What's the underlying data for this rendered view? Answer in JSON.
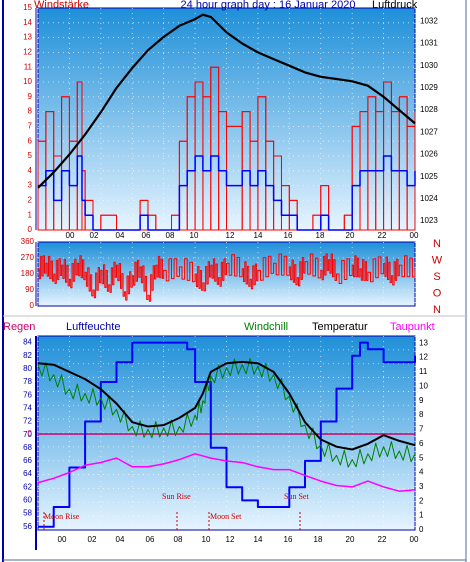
{
  "top_panel": {
    "left_title": "Windstärke",
    "center_title": "24 hour graph day : 16 Januar 2020",
    "right_title": "Luftdruck",
    "left_ticks": [
      "0",
      "1",
      "2",
      "3",
      "4",
      "5",
      "6",
      "7",
      "8",
      "9",
      "10",
      "11",
      "12",
      "13",
      "14",
      "15"
    ],
    "right_ticks": [
      "1023",
      "1024",
      "1025",
      "1026",
      "1027",
      "1028",
      "1029",
      "1030",
      "1031",
      "1032"
    ]
  },
  "direction_panel": {
    "left_ticks": [
      "0",
      "90",
      "180",
      "270",
      "360"
    ],
    "right_letters": [
      "N",
      "W",
      "S",
      "O",
      "N"
    ]
  },
  "bottom_panel": {
    "titles": {
      "rain": "Regen",
      "humidity": "Luftfeuchte",
      "windchill": "Windchill",
      "temperature": "Temperatur",
      "dewpoint": "Taupunkt"
    },
    "left_ticks": [
      "56",
      "58",
      "60",
      "62",
      "64",
      "66",
      "68",
      "70",
      "72",
      "74",
      "76",
      "78",
      "80",
      "82",
      "84"
    ],
    "right_ticks": [
      "0",
      "1",
      "2",
      "3",
      "4",
      "5",
      "6",
      "7",
      "8",
      "9",
      "10",
      "11",
      "12",
      "13"
    ],
    "zero_label": "0",
    "annotations": {
      "moon_rise": "Moon Rise",
      "sun_rise": "Sun Rise",
      "moon_set": "Moon Set",
      "sun_set": "Sun Set"
    }
  },
  "x_ticks": [
    "00",
    "02",
    "04",
    "06",
    "08",
    "10",
    "12",
    "14",
    "16",
    "18",
    "20",
    "22",
    "00"
  ],
  "colors": {
    "frame_blue": "#0000aa",
    "sky_top": "#1e8fd8",
    "sky_bottom": "#e6f4ff",
    "wind_gust": "#ff0000",
    "wind_avg": "#0000ff",
    "pressure": "#000000",
    "direction": "#ff0000",
    "humidity": "#0000ff",
    "temperature": "#000000",
    "windchill": "#008000",
    "dewpoint": "#ff00ff",
    "rain_line": "#cc0066",
    "left_axis_text": "#cc0000"
  },
  "chart_data": [
    {
      "type": "line",
      "title": "24 hour graph day : 16 Januar 2020",
      "x_unit": "hour",
      "xlim": [
        0,
        24
      ],
      "series": [
        {
          "name": "Windstärke",
          "axis": "left",
          "ylim": [
            0,
            15
          ],
          "points": [
            [
              0,
              6
            ],
            [
              0.5,
              8
            ],
            [
              1,
              5
            ],
            [
              1.5,
              9
            ],
            [
              2,
              6
            ],
            [
              2.5,
              10
            ],
            [
              2.8,
              4
            ],
            [
              3,
              2
            ],
            [
              3.5,
              0
            ],
            [
              4,
              1
            ],
            [
              5,
              0
            ],
            [
              6,
              0
            ],
            [
              6.5,
              2
            ],
            [
              7,
              1
            ],
            [
              7.5,
              0
            ],
            [
              8,
              0
            ],
            [
              8.5,
              1
            ],
            [
              9,
              6
            ],
            [
              9.5,
              9
            ],
            [
              10,
              10
            ],
            [
              10.5,
              9
            ],
            [
              11,
              11
            ],
            [
              11.5,
              8
            ],
            [
              12,
              7
            ],
            [
              13,
              8
            ],
            [
              13.5,
              6
            ],
            [
              14,
              9
            ],
            [
              14.5,
              6
            ],
            [
              15,
              5
            ],
            [
              15.5,
              3
            ],
            [
              16,
              2
            ],
            [
              16.5,
              0
            ],
            [
              17,
              0
            ],
            [
              17.5,
              1
            ],
            [
              18,
              3
            ],
            [
              18.5,
              0
            ],
            [
              19,
              0
            ],
            [
              19.5,
              1
            ],
            [
              20,
              7
            ],
            [
              20.5,
              8
            ],
            [
              21,
              9
            ],
            [
              21.5,
              8
            ],
            [
              22,
              10
            ],
            [
              22.5,
              8
            ],
            [
              23,
              9
            ],
            [
              23.5,
              7
            ],
            [
              24,
              8
            ]
          ]
        },
        {
          "name": "Luftdruck",
          "axis": "right",
          "ylim": [
            1022.6,
            1032.6
          ],
          "points": [
            [
              0,
              1024.5
            ],
            [
              1,
              1025.2
            ],
            [
              2,
              1026
            ],
            [
              3,
              1026.9
            ],
            [
              4,
              1027.9
            ],
            [
              5,
              1029
            ],
            [
              6,
              1029.9
            ],
            [
              7,
              1030.7
            ],
            [
              8,
              1031.3
            ],
            [
              9,
              1031.8
            ],
            [
              10,
              1032.1
            ],
            [
              10.5,
              1032.3
            ],
            [
              11,
              1032.2
            ],
            [
              12,
              1031.5
            ],
            [
              13,
              1031
            ],
            [
              14,
              1030.6
            ],
            [
              15,
              1030.3
            ],
            [
              16,
              1030
            ],
            [
              17,
              1029.7
            ],
            [
              18,
              1029.5
            ],
            [
              19,
              1029.4
            ],
            [
              20,
              1029.3
            ],
            [
              21,
              1029.1
            ],
            [
              22,
              1028.6
            ],
            [
              23,
              1028
            ],
            [
              24,
              1027.4
            ]
          ]
        }
      ]
    },
    {
      "type": "line",
      "series": [
        {
          "name": "",
          "ylim": [
            0,
            360
          ],
          "points": [
            [
              0,
              210
            ],
            [
              0.5,
              240
            ],
            [
              1,
              180
            ],
            [
              1.5,
              230
            ],
            [
              2,
              150
            ],
            [
              2.5,
              240
            ],
            [
              3,
              190
            ],
            [
              3.5,
              90
            ],
            [
              4,
              200
            ],
            [
              4.5,
              120
            ],
            [
              5,
              230
            ],
            [
              5.5,
              80
            ],
            [
              6,
              170
            ],
            [
              6.5,
              220
            ],
            [
              7,
              60
            ],
            [
              7.5,
              230
            ],
            [
              8,
              200
            ],
            [
              9,
              220
            ],
            [
              10,
              180
            ],
            [
              10.5,
              130
            ],
            [
              11,
              230
            ],
            [
              11.5,
              160
            ],
            [
              12,
              240
            ],
            [
              13,
              210
            ],
            [
              13.5,
              150
            ],
            [
              14,
              200
            ],
            [
              15,
              240
            ],
            [
              16,
              220
            ],
            [
              16.5,
              160
            ],
            [
              17,
              250
            ],
            [
              18,
              200
            ],
            [
              18.5,
              260
            ],
            [
              19,
              180
            ],
            [
              20,
              230
            ],
            [
              20.5,
              210
            ],
            [
              21,
              190
            ],
            [
              22,
              240
            ],
            [
              22.5,
              170
            ],
            [
              23,
              230
            ],
            [
              24,
              210
            ]
          ]
        }
      ]
    },
    {
      "type": "line",
      "series": [
        {
          "name": "Luftfeuchte",
          "axis": "left",
          "ylim": [
            55.5,
            85
          ],
          "points": [
            [
              0,
              56
            ],
            [
              1,
              59
            ],
            [
              2,
              65
            ],
            [
              3,
              72
            ],
            [
              4,
              78
            ],
            [
              5,
              81
            ],
            [
              6,
              84
            ],
            [
              7,
              84
            ],
            [
              8,
              84
            ],
            [
              9,
              84
            ],
            [
              9.5,
              83
            ],
            [
              10,
              78
            ],
            [
              11,
              68
            ],
            [
              12,
              62
            ],
            [
              13,
              60
            ],
            [
              14,
              59
            ],
            [
              15,
              59
            ],
            [
              16,
              62
            ],
            [
              17,
              66
            ],
            [
              18,
              72
            ],
            [
              19,
              77
            ],
            [
              20,
              82
            ],
            [
              20.5,
              84
            ],
            [
              21,
              83
            ],
            [
              22,
              81
            ],
            [
              23,
              81
            ],
            [
              24,
              82
            ]
          ]
        },
        {
          "name": "Temperatur",
          "axis": "right",
          "ylim": [
            0,
            13.5
          ],
          "points": [
            [
              0,
              11.6
            ],
            [
              1,
              11.5
            ],
            [
              2,
              11
            ],
            [
              3,
              10.5
            ],
            [
              4,
              9.8
            ],
            [
              5,
              8.8
            ],
            [
              6,
              7.5
            ],
            [
              7,
              7.2
            ],
            [
              8,
              7.3
            ],
            [
              9,
              7.8
            ],
            [
              10,
              8.5
            ],
            [
              10.5,
              9.5
            ],
            [
              11,
              11
            ],
            [
              12,
              11.6
            ],
            [
              13,
              11.7
            ],
            [
              14,
              11.6
            ],
            [
              15,
              11
            ],
            [
              16,
              9.5
            ],
            [
              17,
              7.5
            ],
            [
              18,
              6.3
            ],
            [
              19,
              5.8
            ],
            [
              20,
              5.6
            ],
            [
              21,
              6
            ],
            [
              22,
              6.6
            ],
            [
              23,
              6.2
            ],
            [
              24,
              5.9
            ]
          ]
        },
        {
          "name": "Windchill",
          "axis": "right",
          "ylim": [
            0,
            13.5
          ],
          "points": [
            [
              0,
              11.5
            ],
            [
              1,
              10.8
            ],
            [
              2,
              9.8
            ],
            [
              3,
              9.5
            ],
            [
              4,
              9.2
            ],
            [
              5,
              8.4
            ],
            [
              6,
              7.2
            ],
            [
              7,
              7
            ],
            [
              8,
              7.1
            ],
            [
              9,
              7.2
            ],
            [
              10,
              8
            ],
            [
              10.5,
              9
            ],
            [
              11,
              10.7
            ],
            [
              12,
              11.3
            ],
            [
              13,
              11.5
            ],
            [
              14,
              11.4
            ],
            [
              15,
              10.8
            ],
            [
              16,
              9.3
            ],
            [
              17,
              7.3
            ],
            [
              18,
              5.9
            ],
            [
              19,
              5.2
            ],
            [
              20,
              4.9
            ],
            [
              21,
              5.3
            ],
            [
              22,
              5.8
            ],
            [
              23,
              5.5
            ],
            [
              24,
              5.3
            ]
          ]
        },
        {
          "name": "Taupunkt",
          "axis": "right",
          "ylim": [
            0,
            13.5
          ],
          "points": [
            [
              0,
              3.3
            ],
            [
              1,
              3.6
            ],
            [
              2,
              4
            ],
            [
              3,
              4.5
            ],
            [
              4,
              4.7
            ],
            [
              5,
              5
            ],
            [
              6,
              4.4
            ],
            [
              7,
              4.4
            ],
            [
              8,
              4.6
            ],
            [
              9,
              4.9
            ],
            [
              10,
              5.3
            ],
            [
              11,
              5
            ],
            [
              12,
              4.8
            ],
            [
              13,
              4.7
            ],
            [
              14,
              4.4
            ],
            [
              15,
              4.2
            ],
            [
              16,
              4.2
            ],
            [
              17,
              3.8
            ],
            [
              18,
              3.4
            ],
            [
              19,
              3.1
            ],
            [
              20,
              3
            ],
            [
              21,
              3.4
            ],
            [
              22,
              3
            ],
            [
              23,
              2.7
            ],
            [
              24,
              2.8
            ]
          ]
        }
      ],
      "rain": {
        "name": "Regen",
        "value": 0
      },
      "events": [
        {
          "label": "Moon Rise",
          "hour": 0.2
        },
        {
          "label": "Sun Rise",
          "hour": 8.2
        },
        {
          "label": "Moon Set",
          "hour": 11.0
        },
        {
          "label": "Sun Set",
          "hour": 16.6
        }
      ]
    }
  ]
}
